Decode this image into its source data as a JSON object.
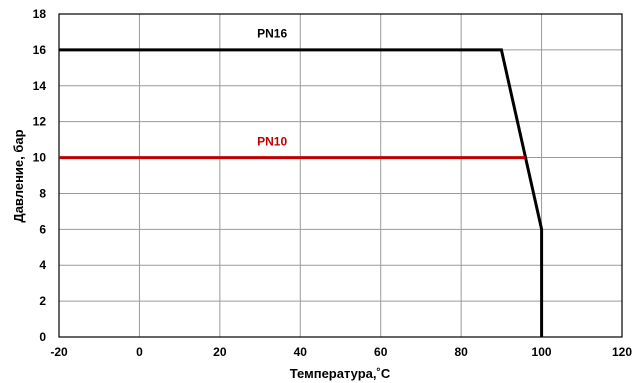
{
  "chart_data": {
    "type": "line",
    "title": "",
    "xlabel": "Температура,˚С",
    "ylabel": "Давление, бар",
    "xlim": [
      -20,
      120
    ],
    "ylim": [
      0,
      18
    ],
    "x_ticks": [
      -20,
      0,
      20,
      40,
      60,
      80,
      100,
      120
    ],
    "y_ticks": [
      0,
      2,
      4,
      6,
      8,
      10,
      12,
      14,
      16,
      18
    ],
    "x_tick_labels": [
      "-20",
      "0",
      "20",
      "40",
      "60",
      "80",
      "100",
      "120"
    ],
    "y_tick_labels": [
      "0",
      "2",
      "4",
      "6",
      "8",
      "10",
      "12",
      "14",
      "16",
      "18"
    ],
    "grid": true,
    "series": [
      {
        "name": "PN16",
        "color": "#000000",
        "points": [
          [
            -20,
            16
          ],
          [
            90,
            16
          ],
          [
            100,
            6
          ],
          [
            100,
            0
          ]
        ]
      },
      {
        "name": "PN10",
        "color": "#c00000",
        "points": [
          [
            -20,
            10
          ],
          [
            96,
            10
          ]
        ]
      }
    ],
    "annotations": [
      {
        "text": "PN16",
        "x": 33,
        "y": 16.9,
        "color": "#000000"
      },
      {
        "text": "PN10",
        "x": 33,
        "y": 10.9,
        "color": "#c00000"
      }
    ]
  }
}
